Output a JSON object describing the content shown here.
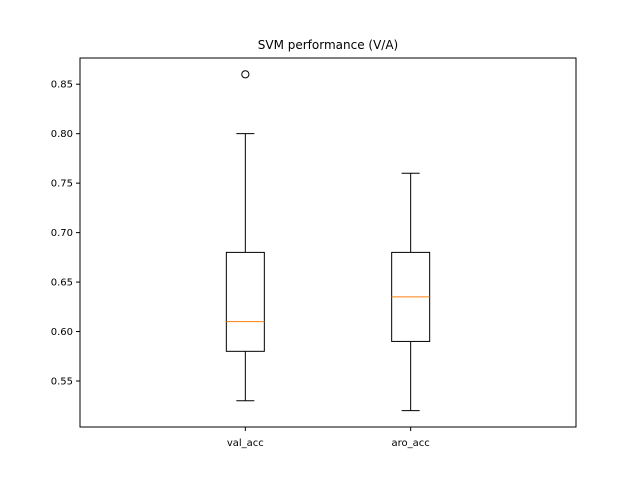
{
  "chart_data": {
    "type": "box",
    "title": "SVM performance (V/A)",
    "xlabel": "",
    "ylabel": "",
    "ylim": [
      0.5035,
      0.8765
    ],
    "yticks": [
      0.55,
      0.6,
      0.65,
      0.7,
      0.75,
      0.8,
      0.85
    ],
    "ytick_labels": [
      "0.55",
      "0.60",
      "0.65",
      "0.70",
      "0.75",
      "0.80",
      "0.85"
    ],
    "grid": false,
    "categories": [
      "val_acc",
      "aro_acc"
    ],
    "boxes": [
      {
        "name": "val_acc",
        "whisker_low": 0.53,
        "q1": 0.58,
        "median": 0.61,
        "q3": 0.68,
        "whisker_high": 0.8,
        "outliers": [
          0.86
        ]
      },
      {
        "name": "aro_acc",
        "whisker_low": 0.52,
        "q1": 0.59,
        "median": 0.635,
        "q3": 0.68,
        "whisker_high": 0.76,
        "outliers": []
      }
    ],
    "colors": {
      "box": "#000000",
      "median": "#ff7f0e",
      "axes": "#000000",
      "background": "#ffffff"
    }
  }
}
